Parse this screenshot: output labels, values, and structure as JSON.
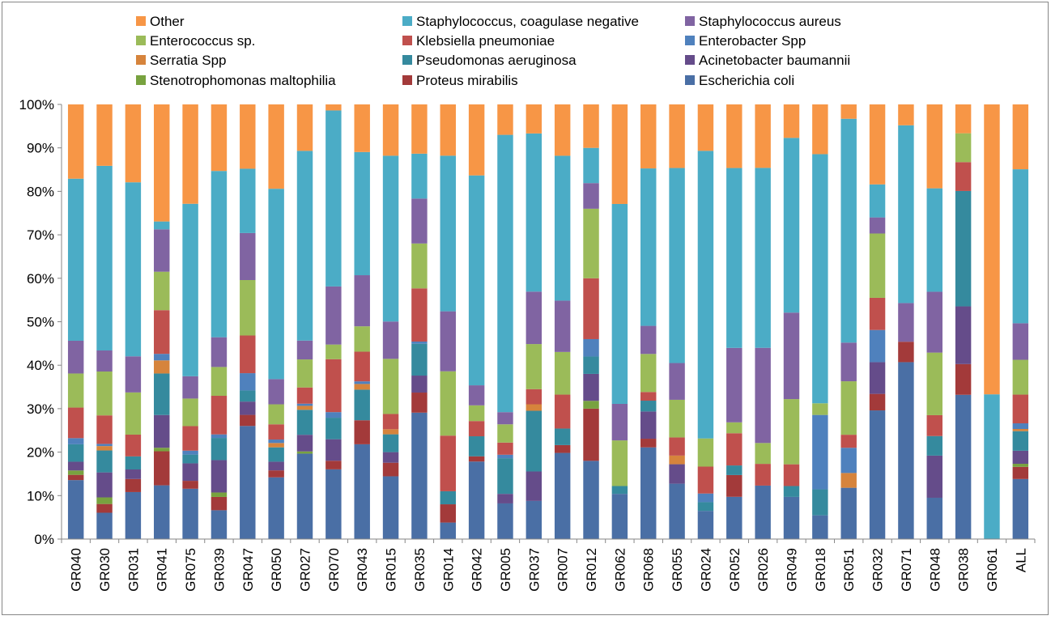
{
  "chart_data": {
    "type": "bar",
    "stacked": true,
    "percent_stacked": true,
    "title": "",
    "xlabel": "",
    "ylabel": "",
    "ylim": [
      0,
      100
    ],
    "y_ticks": [
      "0%",
      "10%",
      "20%",
      "30%",
      "40%",
      "50%",
      "60%",
      "70%",
      "80%",
      "90%",
      "100%"
    ],
    "grid": false,
    "legend_position": "top",
    "categories": [
      "GR040",
      "GR030",
      "GR031",
      "GR041",
      "GR075",
      "GR039",
      "GR047",
      "GR050",
      "GR027",
      "GR070",
      "GR043",
      "GR015",
      "GR035",
      "GR014",
      "GR042",
      "GR005",
      "GR037",
      "GR007",
      "GR012",
      "GR062",
      "GR068",
      "GR055",
      "GR024",
      "GR052",
      "GR026",
      "GR049",
      "GR018",
      "GR051",
      "GR032",
      "GR071",
      "GR048",
      "GR038",
      "GR061",
      "ALL"
    ],
    "legend_order": [
      "Other",
      "Staphylococcus, coagulase negative",
      "Staphylococcus aureus",
      "Enterococcus sp.",
      "Klebsiella pneumoniae",
      "Enterobacter Spp",
      "Serratia Spp",
      "Pseudomonas aeruginosa",
      "Acinetobacter baumannii",
      "Stenotrophomonas maltophilia",
      "Proteus mirabilis",
      "Escherichia coli"
    ],
    "series": [
      {
        "name": "Escherichia coli",
        "color": "#4a6fa5",
        "values": [
          13.5,
          6,
          10.8,
          12.3,
          11.5,
          6.5,
          25.5,
          14.2,
          19.5,
          16.2,
          21.7,
          14.8,
          29,
          3.8,
          17.8,
          8.2,
          8.8,
          19.8,
          18,
          10.4,
          21.2,
          12.8,
          6.5,
          9.7,
          12.3,
          9.7,
          5.3,
          11.8,
          29.6,
          40.7,
          9.5,
          31,
          0,
          13.8
        ]
      },
      {
        "name": "Proteus mirabilis",
        "color": "#a33a3a",
        "values": [
          1.2,
          2,
          3,
          7.8,
          1.8,
          3,
          2.5,
          1.6,
          0,
          2,
          5.5,
          3.2,
          4.6,
          4.2,
          1.2,
          0,
          0,
          1.8,
          12,
          0,
          2,
          0,
          0,
          5,
          0,
          0,
          0,
          0,
          3.8,
          4.7,
          0,
          6.6,
          0,
          2.8
        ]
      },
      {
        "name": "Stenotrophomonas maltophilia",
        "color": "#78a23f",
        "values": [
          1,
          1.5,
          0,
          0.8,
          0,
          1,
          0,
          0,
          0.5,
          0,
          0,
          0,
          0,
          0,
          0,
          0,
          0,
          0,
          1.8,
          0,
          0,
          0,
          0,
          0,
          0,
          0,
          0,
          0,
          0,
          0,
          0,
          0,
          0,
          0.7
        ]
      },
      {
        "name": "Acinetobacter baumannii",
        "color": "#654c8a",
        "values": [
          2,
          5.7,
          2.2,
          7.5,
          4,
          7.3,
          3,
          2,
          3.8,
          5,
          0,
          2.5,
          3.9,
          0,
          0,
          2.2,
          6.8,
          0,
          6.2,
          0,
          6.3,
          4.5,
          0,
          0,
          0,
          0,
          0,
          0,
          7.3,
          0,
          9.7,
          12.4,
          0,
          3
        ]
      },
      {
        "name": "Pseudomonas aeruginosa",
        "color": "#358a9e",
        "values": [
          4,
          5,
          3,
          9.5,
          2,
          5,
          2.5,
          3.3,
          5.7,
          5,
          7,
          4.2,
          7.3,
          3,
          4.6,
          8.2,
          14,
          3.8,
          4,
          1.8,
          2.5,
          0,
          2,
          2.2,
          0,
          2.5,
          5.8,
          0,
          0,
          0,
          4.5,
          24.8,
          0,
          4.5
        ]
      },
      {
        "name": "Serratia Spp",
        "color": "#d6843c",
        "values": [
          0,
          1,
          0,
          3,
          0,
          0,
          0,
          1,
          0.9,
          0,
          1.3,
          1.2,
          0,
          0,
          0,
          0,
          1.5,
          0,
          0,
          0,
          0,
          2,
          0,
          0,
          0,
          0,
          0,
          3.4,
          0,
          0,
          0,
          0,
          0,
          0.5
        ]
      },
      {
        "name": "Enterobacter Spp",
        "color": "#4f81bd",
        "values": [
          1.4,
          0.5,
          0,
          1.5,
          0.9,
          0.8,
          3.9,
          0.8,
          0.5,
          1.3,
          0.6,
          0,
          0.5,
          0,
          0,
          0.8,
          0,
          0,
          4,
          0,
          0,
          0,
          2,
          0,
          0,
          0,
          16.6,
          5.8,
          7.4,
          0,
          0,
          0,
          0,
          1.3
        ]
      },
      {
        "name": "Klebsiella pneumoniae",
        "color": "#c0504d",
        "values": [
          7,
          6.5,
          5,
          10,
          5.6,
          8.7,
          8.5,
          3.5,
          3.7,
          12.3,
          6.8,
          3.6,
          12.2,
          12.8,
          3.5,
          2.8,
          3.5,
          7.8,
          14,
          0,
          2,
          4.2,
          6.2,
          7.4,
          5,
          5,
          0,
          3,
          7.4,
          0,
          4.8,
          6.2,
          0,
          6.6
        ]
      },
      {
        "name": "Enterococcus sp.",
        "color": "#9bbb59",
        "values": [
          7.8,
          10,
          9.7,
          8.8,
          6.3,
          6.5,
          12.5,
          4.6,
          6.4,
          3.4,
          5.8,
          13,
          10.3,
          14.8,
          3.6,
          4.2,
          10.4,
          9.8,
          16,
          10.5,
          8.8,
          8.7,
          6.5,
          2.5,
          4.8,
          15,
          2.6,
          12.3,
          14.8,
          0,
          14.4,
          6.2,
          0,
          8
        ]
      },
      {
        "name": "Staphylococcus aureus",
        "color": "#8064a2",
        "values": [
          7.5,
          4.8,
          8.3,
          9.7,
          5.1,
          6.7,
          10.6,
          5.8,
          4.3,
          13.5,
          11.7,
          8.8,
          10.3,
          13.8,
          4.6,
          2.8,
          12.1,
          11.8,
          5.9,
          8.4,
          6.5,
          8.5,
          0,
          17.1,
          21.9,
          19.9,
          0,
          8.9,
          3.7,
          8.9,
          14,
          0,
          0,
          8.4
        ]
      },
      {
        "name": "Staphylococcus, coagulase negative",
        "color": "#4bacc6",
        "values": [
          37.1,
          42.1,
          40,
          1.8,
          39.4,
          37.5,
          14.5,
          43.8,
          43.3,
          40.9,
          28.2,
          39.1,
          10.3,
          35.8,
          48.2,
          63.8,
          36.5,
          33.3,
          8.1,
          46,
          36.4,
          45.1,
          66.3,
          41.3,
          41.4,
          40.2,
          55.6,
          51.5,
          7.6,
          40.9,
          23.8,
          0,
          33.3,
          35.4
        ]
      },
      {
        "name": "Other",
        "color": "#f79646",
        "values": [
          17,
          14,
          17.9,
          26.8,
          22.7,
          15,
          14.5,
          19.4,
          10.6,
          1.4,
          10.9,
          12.1,
          11.3,
          11.8,
          16.3,
          7,
          6.7,
          11.8,
          10,
          22.9,
          14.8,
          14.7,
          10.7,
          14.6,
          14.6,
          7.7,
          11.1,
          3.3,
          18.4,
          4.8,
          19.3,
          6.2,
          66.7,
          14.9
        ]
      }
    ]
  }
}
